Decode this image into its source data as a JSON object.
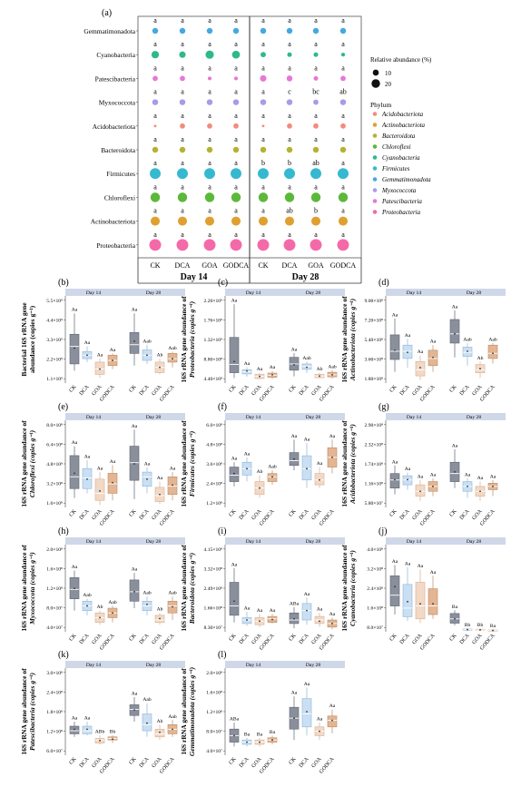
{
  "figure": {
    "panel_a_label": "(a)",
    "box_ylabel": "copies g⁻¹"
  },
  "chart_data": [
    {
      "type": "scatter",
      "panel": "(a)",
      "treatments": [
        "CK",
        "DCA",
        "GOA",
        "GODCA"
      ],
      "days": [
        "Day 14",
        "Day 28"
      ],
      "phyla": [
        "Gemmatimonadota",
        "Cyanobacteria",
        "Patescibacteria",
        "Myxococcota",
        "Acidobacteriota",
        "Bacteroidota",
        "Firmicutes",
        "Chloroflexi",
        "Actinobacteriota",
        "Proteobacteria"
      ],
      "colors": {
        "Acidobacteriota": "#f28c7e",
        "Actinobacteriota": "#e0a030",
        "Bacteroidota": "#b5b22f",
        "Chloroflexi": "#5cb83a",
        "Cyanobacteria": "#2eb98a",
        "Firmicutes": "#35b9d1",
        "Gemmatimonadota": "#45a9e0",
        "Myxococcota": "#a99bea",
        "Patescibacteria": "#e778d6",
        "Proteobacteria": "#f46aa8"
      },
      "relative_abundance": {
        "Gemmatimonadota": [
          5,
          5,
          5,
          5,
          5,
          5,
          5,
          5
        ],
        "Cyanobacteria": [
          8,
          6,
          10,
          9,
          4,
          3,
          3,
          2
        ],
        "Patescibacteria": [
          4,
          4,
          2,
          2,
          6,
          5,
          3,
          4
        ],
        "Myxococcota": [
          5,
          5,
          5,
          5,
          5,
          5,
          4,
          5
        ],
        "Acidobacteriota": [
          1,
          4,
          4,
          4,
          1,
          4,
          4,
          4
        ],
        "Bacteroidota": [
          5,
          5,
          5,
          5,
          5,
          5,
          5,
          5
        ],
        "Firmicutes": [
          17,
          17,
          17,
          17,
          17,
          17,
          17,
          17
        ],
        "Chloroflexi": [
          13,
          13,
          13,
          13,
          13,
          13,
          13,
          13
        ],
        "Actinobacteriota": [
          12,
          12,
          12,
          12,
          12,
          12,
          12,
          12
        ],
        "Proteobacteria": [
          20,
          20,
          20,
          20,
          20,
          20,
          20,
          20
        ]
      },
      "letters": {
        "Gemmatimonadota": [
          "a",
          "a",
          "a",
          "a",
          "a",
          "a",
          "a",
          "a"
        ],
        "Cyanobacteria": [
          "a",
          "a",
          "a",
          "a",
          "a",
          "a",
          "a",
          "a"
        ],
        "Patescibacteria": [
          "a",
          "a",
          "a",
          "a",
          "a",
          "a",
          "a",
          "a"
        ],
        "Myxococcota": [
          "a",
          "a",
          "a",
          "a",
          "a",
          "c",
          "bc",
          "ab"
        ],
        "Acidobacteriota": [
          "a",
          "a",
          "a",
          "a",
          "a",
          "a",
          "a",
          "a"
        ],
        "Bacteroidota": [
          "a",
          "a",
          "a",
          "a",
          "a",
          "a",
          "a",
          "a"
        ],
        "Firmicutes": [
          "a",
          "a",
          "a",
          "a",
          "b",
          "b",
          "ab",
          "a"
        ],
        "Chloroflexi": [
          "a",
          "a",
          "a",
          "a",
          "a",
          "a",
          "a",
          "a"
        ],
        "Actinobacteriota": [
          "a",
          "a",
          "a",
          "a",
          "a",
          "ab",
          "b",
          "a"
        ],
        "Proteobacteria": [
          "a",
          "a",
          "a",
          "a",
          "a",
          "a",
          "a",
          "a"
        ]
      },
      "size_legend": {
        "title": "Relative abundance (%)",
        "values": [
          10,
          20
        ]
      },
      "color_legend": {
        "title": "Phylum",
        "items": [
          "Acidobacteriota",
          "Actinobacteriota",
          "Bacteroidota",
          "Chloroflexi",
          "Cyanobacteria",
          "Firmicutes",
          "Gemmatimonadota",
          "Myxococcota",
          "Patescibacteria",
          "Proteobacteria"
        ]
      }
    },
    {
      "type": "box",
      "panel": "(b)",
      "ylabel": "Bacterial 16S rRNA gene\nabundance (copies g⁻¹)",
      "ylabel_italic": "",
      "ticks": [
        "1.1×10⁹",
        "2.2×10⁹",
        "3.3×10⁹",
        "4.4×10⁹",
        "5.5×10⁹"
      ],
      "ylim": [
        0.6,
        5.6
      ],
      "boxes": [
        [
          1.3,
          1.7,
          2.7,
          3.4,
          4.6
        ],
        [
          1.8,
          2.0,
          2.2,
          2.4,
          2.7
        ],
        [
          0.9,
          1.1,
          1.4,
          1.8,
          2.0
        ],
        [
          1.4,
          1.6,
          1.9,
          2.2,
          2.3
        ],
        [
          1.6,
          2.3,
          2.8,
          3.5,
          4.6
        ],
        [
          1.7,
          1.9,
          2.2,
          2.5,
          2.8
        ],
        [
          1.1,
          1.2,
          1.5,
          1.8,
          2.0
        ],
        [
          1.5,
          1.8,
          2.0,
          2.3,
          2.4
        ]
      ],
      "means": [
        2.6,
        2.2,
        1.4,
        1.9,
        3.0,
        2.2,
        1.5,
        2.0
      ],
      "letters": [
        "Aa",
        "Aa",
        "Aa",
        "Aa",
        "Aa",
        "Aab",
        "Ab",
        "Aab"
      ]
    },
    {
      "type": "box",
      "panel": "(c)",
      "ylabel": "16S rRNA gene abundance of",
      "ylabel_italic": "Proteobacteria (copies g⁻¹)",
      "ticks": [
        "4.40×10⁸",
        "8.80×10⁸",
        "1.32×10⁹",
        "1.76×10⁹",
        "2.20×10⁹"
      ],
      "ylim": [
        2.0,
        23.0
      ],
      "boxes": [
        [
          3.2,
          4.5,
          6.5,
          13.0,
          21.0
        ],
        [
          3.5,
          4.2,
          4.7,
          5.2,
          5.8
        ],
        [
          2.9,
          3.1,
          3.6,
          4.1,
          4.5
        ],
        [
          3.0,
          3.4,
          3.9,
          4.4,
          4.9
        ],
        [
          3.6,
          5.1,
          6.6,
          8.2,
          9.2
        ],
        [
          4.4,
          5.3,
          6.0,
          6.6,
          7.1
        ],
        [
          3.1,
          3.3,
          3.7,
          4.1,
          4.5
        ],
        [
          3.1,
          3.5,
          4.0,
          4.6,
          5.1
        ]
      ],
      "means": [
        7.2,
        4.9,
        3.6,
        4.0,
        6.4,
        5.8,
        3.7,
        4.0
      ],
      "letters": [
        "Aa",
        "Aa",
        "Aa",
        "Aa",
        "Aa",
        "Aab",
        "Ab",
        "Aab"
      ]
    },
    {
      "type": "box",
      "panel": "(d)",
      "ylabel": "16S rRNA gene abundance of",
      "ylabel_italic": "Actinobacteriota (copies g⁻¹)",
      "ticks": [
        "1.80×10⁸",
        "3.60×10⁸",
        "5.40×10⁸",
        "7.20×10⁸",
        "9.00×10⁸"
      ],
      "ylim": [
        0.9,
        9.4
      ],
      "boxes": [
        [
          2.0,
          3.2,
          4.0,
          5.6,
          7.2
        ],
        [
          2.4,
          3.3,
          4.0,
          4.6,
          5.2
        ],
        [
          1.2,
          1.6,
          2.2,
          3.0,
          3.6
        ],
        [
          2.0,
          2.6,
          3.3,
          4.1,
          4.6
        ],
        [
          3.4,
          4.8,
          5.7,
          7.1,
          8.0
        ],
        [
          2.6,
          3.5,
          3.9,
          4.4,
          4.8
        ],
        [
          1.4,
          1.9,
          2.2,
          2.7,
          3.0
        ],
        [
          2.8,
          3.3,
          3.8,
          4.6,
          4.8
        ]
      ],
      "means": [
        4.1,
        3.9,
        2.4,
        3.4,
        5.7,
        4.0,
        2.3,
        3.8
      ],
      "letters": [
        "Aa",
        "Aa",
        "Aa",
        "Aa",
        "Aa",
        "Aab",
        "Ab",
        "Aab"
      ]
    },
    {
      "type": "box",
      "panel": "(e)",
      "ylabel": "16S rRNA gene abundance of",
      "ylabel_italic": "Chloroflexi (copies g⁻¹)",
      "ticks": [
        "1.6×10⁸",
        "3.2×10⁸",
        "4.8×10⁸",
        "6.4×10⁸",
        "8.0×10⁸"
      ],
      "ylim": [
        1.0,
        8.4
      ],
      "boxes": [
        [
          1.8,
          2.6,
          3.6,
          5.4,
          6.2
        ],
        [
          2.2,
          2.6,
          3.5,
          4.3,
          5.0
        ],
        [
          1.2,
          1.6,
          2.2,
          3.4,
          4.0
        ],
        [
          1.6,
          2.2,
          3.0,
          3.9,
          4.6
        ],
        [
          1.7,
          3.3,
          4.8,
          6.2,
          7.6
        ],
        [
          2.2,
          2.8,
          3.6,
          4.0,
          4.4
        ],
        [
          1.3,
          1.5,
          2.0,
          2.7,
          3.2
        ],
        [
          1.6,
          2.1,
          2.8,
          3.6,
          4.0
        ]
      ],
      "means": [
        3.9,
        3.4,
        2.4,
        3.1,
        4.7,
        3.4,
        2.1,
        2.9
      ],
      "letters": [
        "Aa",
        "Aa",
        "Aa",
        "Aa",
        "Aa",
        "Aa",
        "Aa",
        "Aa"
      ]
    },
    {
      "type": "box",
      "panel": "(f)",
      "ylabel": "16S rRNA gene abundance of",
      "ylabel_italic": "Firmicutes (copies g⁻¹)",
      "ticks": [
        "1.2×10⁸",
        "2.4×10⁸",
        "3.6×10⁸",
        "4.8×10⁸",
        "6.0×10⁸"
      ],
      "ylim": [
        0.8,
        6.2
      ],
      "boxes": [
        [
          2.1,
          2.4,
          2.8,
          3.3,
          3.6
        ],
        [
          2.4,
          2.8,
          3.2,
          3.6,
          3.9
        ],
        [
          1.4,
          1.6,
          2.0,
          2.4,
          2.8
        ],
        [
          2.2,
          2.4,
          2.7,
          2.9,
          3.1
        ],
        [
          3.1,
          3.4,
          3.7,
          4.2,
          5.0
        ],
        [
          2.0,
          2.5,
          3.2,
          4.0,
          4.8
        ],
        [
          2.0,
          2.2,
          2.5,
          2.9,
          3.3
        ],
        [
          2.9,
          3.3,
          3.9,
          4.5,
          5.0
        ]
      ],
      "means": [
        2.9,
        3.2,
        2.0,
        2.7,
        3.8,
        3.2,
        2.5,
        3.9
      ],
      "letters": [
        "Aa",
        "Aa",
        "Ab",
        "Aab",
        "Aa",
        "Aa",
        "Aa",
        "Aa"
      ]
    },
    {
      "type": "box",
      "panel": "(g)",
      "ylabel": "16S rRNA gene abundance of",
      "ylabel_italic": "Acidobacteriota (copies g⁻¹)",
      "ticks": [
        "5.80×10⁷",
        "1.16×10⁸",
        "1.74×10⁸",
        "2.32×10⁸",
        "2.90×10⁸"
      ],
      "ylim": [
        3.0,
        30.0
      ],
      "boxes": [
        [
          7.0,
          9.0,
          11.5,
          13.5,
          16.0
        ],
        [
          8.5,
          10.0,
          11.5,
          12.8,
          13.8
        ],
        [
          5.0,
          6.5,
          8.0,
          10.0,
          11.5
        ],
        [
          6.5,
          8.0,
          9.5,
          11.0,
          12.0
        ],
        [
          9.0,
          11.0,
          13.5,
          17.0,
          21.0
        ],
        [
          6.0,
          8.0,
          9.5,
          11.0,
          12.0
        ],
        [
          5.0,
          6.5,
          8.0,
          9.5,
          11.0
        ],
        [
          6.5,
          8.5,
          9.5,
          10.5,
          11.5
        ]
      ],
      "means": [
        11.6,
        11.6,
        8.0,
        9.5,
        14.0,
        9.5,
        8.0,
        9.5
      ],
      "letters": [
        "Aa",
        "Aa",
        "Aa",
        "Aa",
        "Aa",
        "Aa",
        "Aa",
        "Aa"
      ]
    },
    {
      "type": "box",
      "panel": "(h)",
      "ylabel": "16S rRNA gene abundance of",
      "ylabel_italic": "Myxococcota (copies g⁻¹)",
      "ticks": [
        "4.0×10⁷",
        "8.0×10⁷",
        "1.2×10⁸",
        "1.6×10⁸",
        "2.0×10⁸"
      ],
      "ylim": [
        2.0,
        20.5
      ],
      "boxes": [
        [
          6.5,
          9.0,
          11.0,
          13.5,
          15.0
        ],
        [
          5.5,
          6.5,
          7.5,
          8.5,
          9.0
        ],
        [
          3.5,
          4.0,
          5.0,
          6.0,
          6.5
        ],
        [
          4.0,
          5.0,
          6.0,
          7.0,
          7.5
        ],
        [
          7.0,
          8.5,
          10.5,
          13.0,
          14.5
        ],
        [
          5.5,
          6.5,
          7.5,
          8.5,
          9.5
        ],
        [
          3.5,
          4.0,
          4.5,
          5.5,
          6.0
        ],
        [
          4.5,
          6.0,
          7.5,
          8.5,
          9.5
        ]
      ],
      "means": [
        11.2,
        7.5,
        5.0,
        6.0,
        10.5,
        7.8,
        4.8,
        7.3
      ],
      "letters": [
        "Aa",
        "Aab",
        "Ab",
        "Aab",
        "Aa",
        "Aab",
        "Ab",
        "Aab"
      ]
    },
    {
      "type": "box",
      "panel": "(i)",
      "ylabel": "16S rRNA gene abundance of",
      "ylabel_italic": "Bacteroidota (copies g⁻¹)",
      "ticks": [
        "8.30×10⁷",
        "1.66×10⁸",
        "2.49×10⁸",
        "3.32×10⁸",
        "4.15×10⁸"
      ],
      "ylim": [
        5.0,
        42.0
      ],
      "boxes": [
        [
          9.0,
          12.0,
          16.0,
          26.0,
          32.0
        ],
        [
          7.5,
          8.5,
          10.0,
          11.0,
          13.5
        ],
        [
          7.0,
          8.0,
          9.5,
          11.0,
          12.5
        ],
        [
          8.5,
          9.0,
          10.5,
          11.5,
          12.5
        ],
        [
          6.5,
          8.5,
          10.0,
          13.0,
          15.5
        ],
        [
          8.0,
          10.0,
          14.0,
          17.0,
          19.5
        ],
        [
          7.0,
          8.5,
          10.0,
          11.5,
          13.0
        ],
        [
          6.0,
          7.0,
          8.5,
          10.0,
          11.0
        ]
      ],
      "means": [
        18.0,
        10.0,
        9.5,
        10.2,
        10.5,
        14.0,
        9.5,
        8.5
      ],
      "letters": [
        "Aa",
        "Aa",
        "Aa",
        "Aa",
        "ABa",
        "Aa",
        "Aa",
        "Aa"
      ]
    },
    {
      "type": "box",
      "panel": "(j)",
      "ylabel": "16S rRNA gene abundance of",
      "ylabel_italic": "Cyanobacteria (copies g⁻¹)",
      "ticks": [
        "8.0×10⁷",
        "1.6×10⁸",
        "2.4×10⁸",
        "3.2×10⁸",
        "4.0×10⁸"
      ],
      "ylim": [
        0.0,
        40.5
      ],
      "boxes": [
        [
          8.0,
          12.0,
          17.0,
          26.0,
          31.0
        ],
        [
          5.0,
          7.0,
          11.0,
          22.0,
          30.0
        ],
        [
          4.0,
          6.0,
          12.0,
          23.0,
          29.0
        ],
        [
          6.0,
          8.0,
          12.0,
          20.0,
          26.0
        ],
        [
          3.0,
          4.0,
          6.0,
          8.5,
          10.0
        ],
        [
          0.5,
          0.7,
          1.0,
          1.3,
          1.5
        ],
        [
          0.5,
          0.7,
          0.9,
          1.2,
          1.4
        ],
        [
          0.2,
          0.4,
          0.6,
          0.8,
          1.0
        ]
      ],
      "means": [
        21.0,
        14.0,
        13.0,
        13.0,
        6.0,
        1.0,
        0.9,
        0.6
      ],
      "letters": [
        "Aa",
        "Aa",
        "Aa",
        "Aa",
        "Ba",
        "Bb",
        "Bb",
        "Ba"
      ]
    },
    {
      "type": "box",
      "panel": "(k)",
      "ylabel": "16S rRNA gene abundance of",
      "ylabel_italic": "Patescibacteria (copies g⁻¹)",
      "ticks": [
        "6.0×10⁷",
        "1.2×10⁸",
        "1.8×10⁸",
        "2.4×10⁸",
        "3.0×10⁸"
      ],
      "ylim": [
        2.0,
        30.5
      ],
      "boxes": [
        [
          8.0,
          9.0,
          10.0,
          11.5,
          13.0
        ],
        [
          8.5,
          9.0,
          10.0,
          11.5,
          13.0
        ],
        [
          5.5,
          6.0,
          7.0,
          7.5,
          8.5
        ],
        [
          6.0,
          7.0,
          7.5,
          8.0,
          8.5
        ],
        [
          13.0,
          15.0,
          17.0,
          18.5,
          21.0
        ],
        [
          8.0,
          10.0,
          12.0,
          15.5,
          19.0
        ],
        [
          7.0,
          8.0,
          9.0,
          10.5,
          12.0
        ],
        [
          8.0,
          9.0,
          10.5,
          12.0,
          13.5
        ]
      ],
      "means": [
        10.5,
        10.5,
        6.8,
        7.3,
        16.8,
        12.5,
        9.5,
        10.5
      ],
      "letters": [
        "Aa",
        "Aa",
        "ABb",
        "Bb",
        "Aa",
        "Aab",
        "Ab",
        "Aab"
      ]
    },
    {
      "type": "box",
      "panel": "(l)",
      "ylabel": "16S rRNA gene abundance of",
      "ylabel_italic": "Gemmatimonadota (copies g⁻¹)",
      "ticks": [
        "4.0×10⁷",
        "8.0×10⁷",
        "1.2×10⁸",
        "1.6×10⁸",
        "2.0×10⁸"
      ],
      "ylim": [
        0.5,
        20.5
      ],
      "boxes": [
        [
          2.5,
          3.5,
          5.0,
          6.5,
          8.0
        ],
        [
          2.5,
          3.0,
          3.5,
          4.0,
          4.5
        ],
        [
          2.5,
          3.0,
          3.5,
          4.0,
          4.5
        ],
        [
          3.0,
          3.5,
          4.0,
          4.5,
          5.0
        ],
        [
          4.0,
          6.5,
          9.0,
          11.5,
          14.0
        ],
        [
          5.0,
          7.0,
          10.0,
          13.5,
          16.0
        ],
        [
          4.0,
          5.0,
          6.0,
          7.0,
          8.0
        ],
        [
          5.5,
          7.0,
          8.5,
          9.5,
          11.0
        ]
      ],
      "means": [
        5.0,
        3.5,
        3.5,
        4.0,
        9.0,
        10.5,
        6.0,
        8.5
      ],
      "letters": [
        "ABa",
        "Ba",
        "Ba",
        "Ba",
        "Aa",
        "Aa",
        "Aa",
        "Aa"
      ]
    }
  ]
}
